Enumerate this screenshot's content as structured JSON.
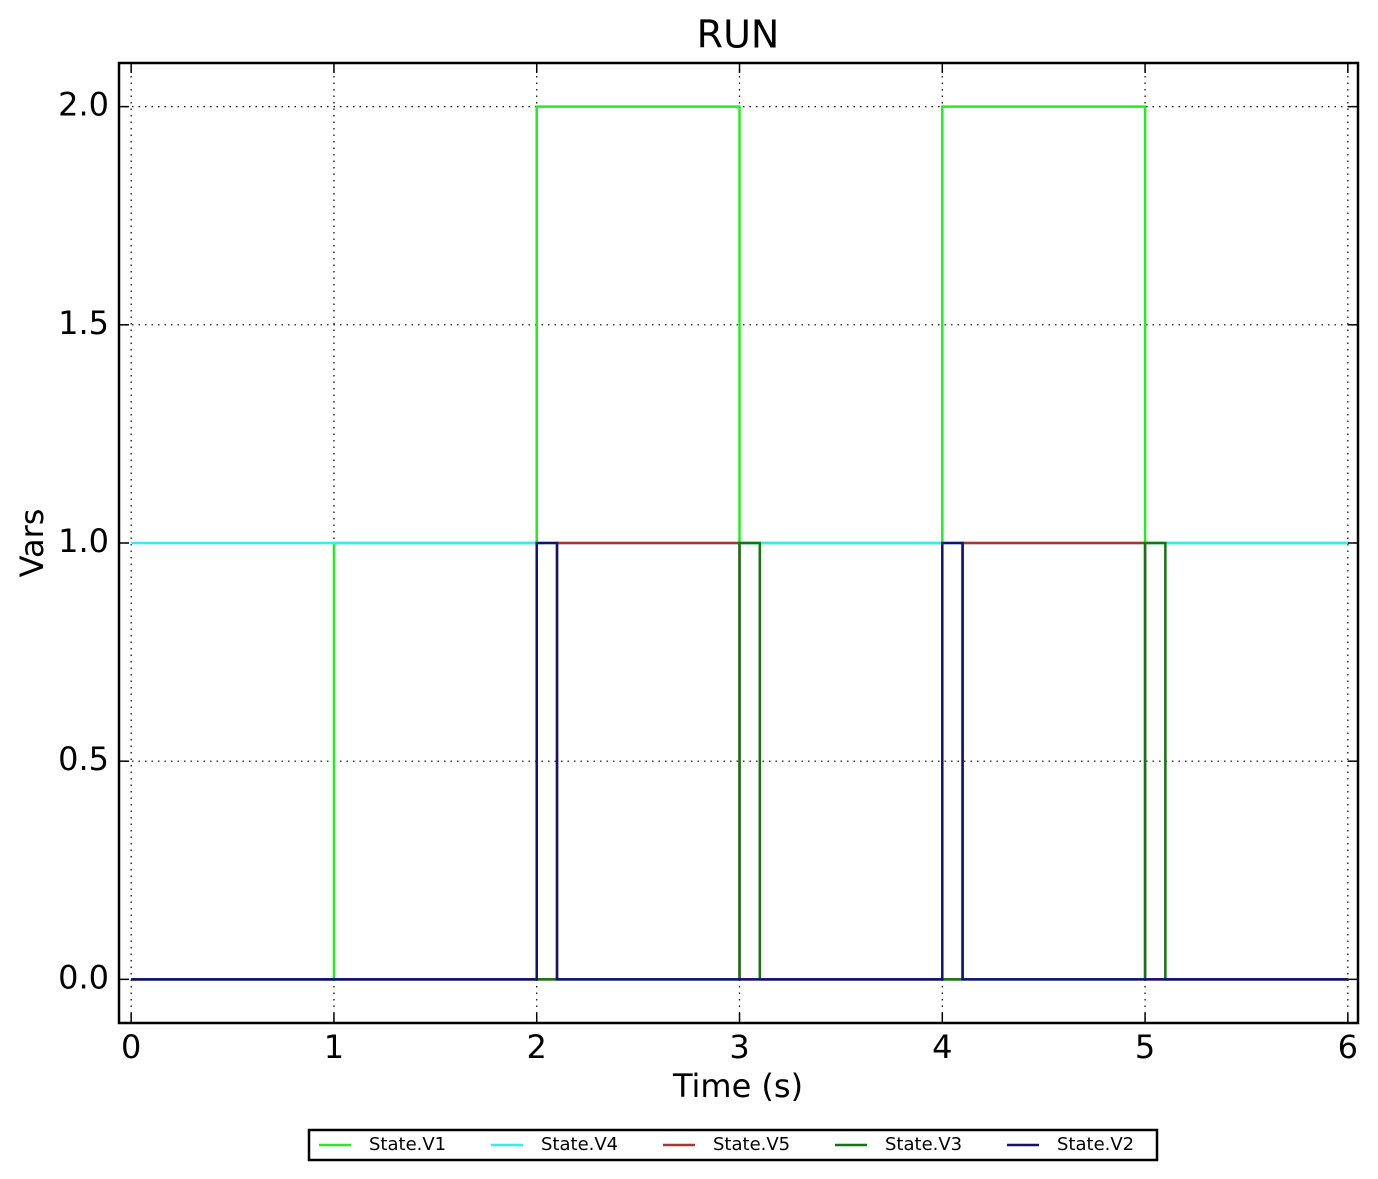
{
  "chart_data": {
    "type": "line",
    "title": "RUN",
    "x_label": "Time (s)",
    "y_label": "Vars",
    "xlim": [
      -0.06,
      6.05
    ],
    "ylim": [
      -0.1,
      2.1
    ],
    "xticks": [
      0,
      1,
      2,
      3,
      4,
      5,
      6
    ],
    "yticks": [
      {
        "value": 0,
        "label": "0.0"
      },
      0.5,
      {
        "value": 1,
        "label": "1.0"
      },
      1.5,
      {
        "value": 2,
        "label": "2.0"
      }
    ],
    "grid": true,
    "legend": "bottom",
    "series": [
      {
        "name": "State.V1",
        "color": "#22ee22",
        "x": [
          0,
          1,
          1,
          2,
          2,
          3,
          3,
          4,
          4,
          5,
          5,
          6
        ],
        "values": [
          0,
          0,
          1,
          1,
          2,
          2,
          1,
          1,
          2,
          2,
          1,
          1
        ]
      },
      {
        "name": "State.V4",
        "color": "#33eeee",
        "x": [
          0,
          6
        ],
        "values": [
          1,
          1
        ]
      },
      {
        "name": "State.V5",
        "color": "#aa3333",
        "x": [
          0,
          2.1,
          2.1,
          3,
          3,
          4.1,
          4.1,
          5,
          5,
          6
        ],
        "values": [
          0,
          0,
          1,
          1,
          0,
          0,
          1,
          1,
          0,
          0
        ]
      },
      {
        "name": "State.V3",
        "color": "#117711",
        "x": [
          0,
          3,
          3,
          3.1,
          3.1,
          5,
          5,
          5.1,
          5.1,
          6
        ],
        "values": [
          0,
          0,
          1,
          1,
          0,
          0,
          1,
          1,
          0,
          0
        ]
      },
      {
        "name": "State.V2",
        "color": "#111177",
        "x": [
          0,
          2,
          2,
          2.1,
          2.1,
          4,
          4,
          4.1,
          4.1,
          6
        ],
        "values": [
          0,
          0,
          1,
          1,
          0,
          0,
          1,
          1,
          0,
          0
        ]
      }
    ]
  }
}
